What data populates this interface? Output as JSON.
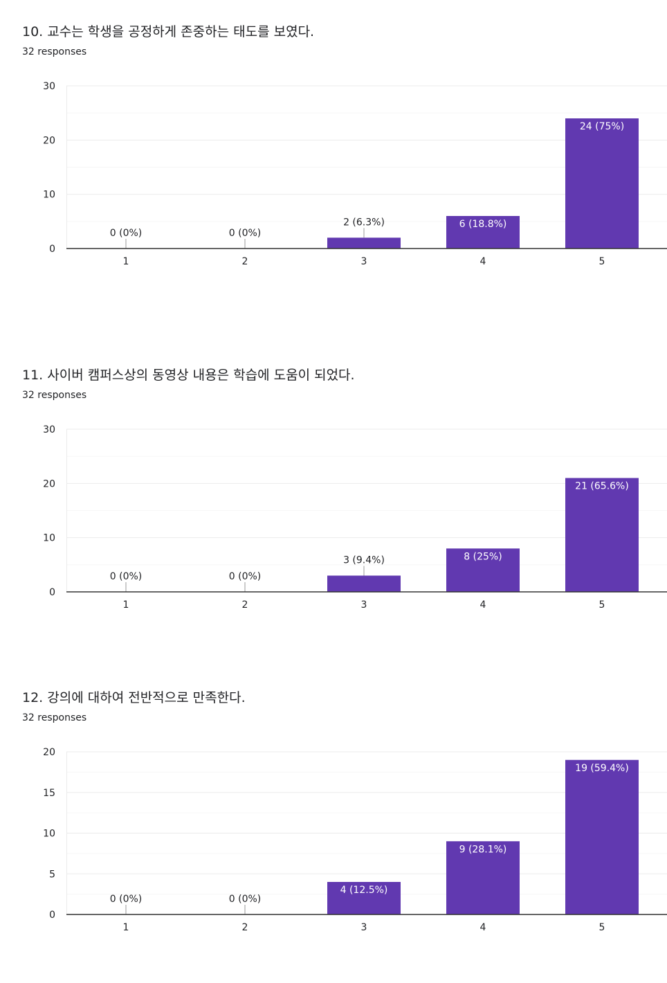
{
  "colors": {
    "bar": "#6139b0",
    "grid": "#ebebeb",
    "minor_grid": "#f6f6f6",
    "axis": "#333333",
    "text": "#202124",
    "bar_label_inside": "#ffffff"
  },
  "questions": [
    {
      "title": "10. 교수는 학생을 공정하게 존중하는 태도를 보였다.",
      "responses": "32 responses"
    },
    {
      "title": "11. 사이버 캠퍼스상의 동영상 내용은 학습에 도움이 되었다.",
      "responses": "32 responses"
    },
    {
      "title": "12. 강의에 대하여 전반적으로 만족한다.",
      "responses": "32 responses"
    }
  ],
  "chart_data": [
    {
      "type": "bar",
      "categories": [
        "1",
        "2",
        "3",
        "4",
        "5"
      ],
      "values": [
        0,
        0,
        2,
        6,
        24
      ],
      "data_labels": [
        "0 (0%)",
        "0 (0%)",
        "2 (6.3%)",
        "6 (18.8%)",
        "24 (75%)"
      ],
      "ylim": [
        0,
        30
      ],
      "yticks": [
        0,
        10,
        20,
        30
      ],
      "minor_step": 5,
      "grid": true
    },
    {
      "type": "bar",
      "categories": [
        "1",
        "2",
        "3",
        "4",
        "5"
      ],
      "values": [
        0,
        0,
        3,
        8,
        21
      ],
      "data_labels": [
        "0 (0%)",
        "0 (0%)",
        "3 (9.4%)",
        "8 (25%)",
        "21 (65.6%)"
      ],
      "ylim": [
        0,
        30
      ],
      "yticks": [
        0,
        10,
        20,
        30
      ],
      "minor_step": 5,
      "grid": true
    },
    {
      "type": "bar",
      "categories": [
        "1",
        "2",
        "3",
        "4",
        "5"
      ],
      "values": [
        0,
        0,
        4,
        9,
        19
      ],
      "data_labels": [
        "0 (0%)",
        "0 (0%)",
        "4 (12.5%)",
        "9 (28.1%)",
        "19 (59.4%)"
      ],
      "ylim": [
        0,
        20
      ],
      "yticks": [
        0,
        5,
        10,
        15,
        20
      ],
      "minor_step": 2.5,
      "grid": true
    }
  ]
}
